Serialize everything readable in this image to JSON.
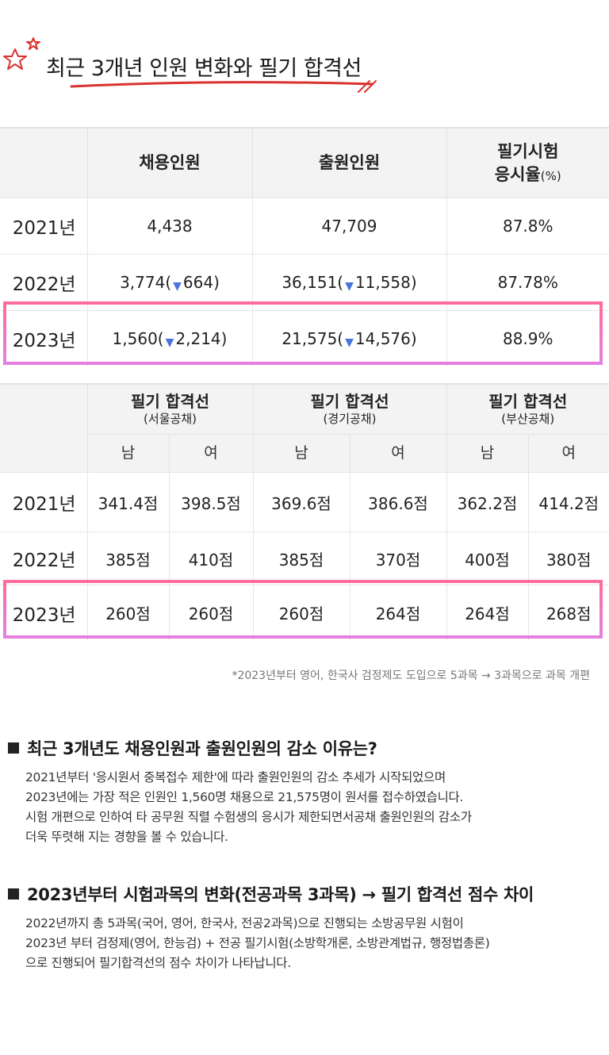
{
  "heading": {
    "title": "최근 3개년 인원 변화와 필기 합격선"
  },
  "table1": {
    "headers": [
      "채용인원",
      "출원인원",
      "필기시험",
      "응시율",
      "(%)"
    ],
    "rows": [
      {
        "year": "2021년",
        "hire": "4,438",
        "hire_delta": "",
        "apply": "47,709",
        "apply_delta": "",
        "rate": "87.8%"
      },
      {
        "year": "2022년",
        "hire": "3,774(",
        "hire_delta": "664)",
        "apply": "36,151(",
        "apply_delta": "11,558)",
        "rate": "87.78%"
      },
      {
        "year": "2023년",
        "hire": "1,560(",
        "hire_delta": "2,214)",
        "apply": "21,575(",
        "apply_delta": "14,576)",
        "rate": "88.9%"
      }
    ],
    "down_arrow": "▼"
  },
  "table2": {
    "group_title": "필기 합격선",
    "groups": [
      "(서울공채)",
      "(경기공채)",
      "(부산공채)"
    ],
    "genders": [
      "남",
      "여"
    ],
    "rows": [
      {
        "year": "2021년",
        "vals": [
          "341.4점",
          "398.5점",
          "369.6점",
          "386.6점",
          "362.2점",
          "414.2점"
        ]
      },
      {
        "year": "2022년",
        "vals": [
          "385점",
          "410점",
          "385점",
          "370점",
          "400점",
          "380점"
        ]
      },
      {
        "year": "2023년",
        "vals": [
          "260점",
          "260점",
          "260점",
          "264점",
          "264점",
          "268점"
        ]
      }
    ]
  },
  "footnote": "*2023년부터 영어, 한국사 검정제도 도입으로 5과목 → 3과목으로 과목 개편",
  "section1": {
    "question": "최근 3개년도 채용인원과 출원인원의 감소 이유는?",
    "lines": [
      "2021년부터 '응시원서 중복접수 제한'에 따라 출원인원의 감소 추세가 시작되었으며",
      "2023년에는 가장 적은 인원인 1,560명 채용으로 21,575명이 원서를 접수하였습니다.",
      "시험 개편으로 인하여 타 공무원 직렬 수험생의 응시가 제한되면서공채 출원인원의 감소가",
      "더욱 뚜렷해 지는 경향을 볼 수 있습니다."
    ]
  },
  "section2": {
    "question": "2023년부터 시험과목의 변화(전공과목 3과목) → 필기 합격선 점수 차이",
    "lines": [
      "2022년까지 총 5과목(국어, 영어, 한국사, 전공2과목)으로 진행되는 소방공무원 시험이",
      "2023년 부터 검정제(영어, 한능검) + 전공 필기시험(소방학개론, 소방관계법규, 행정법총론)",
      "으로 진행되어 필기합격선의 점수 차이가 나타납니다."
    ]
  },
  "colors": {
    "highlight_top": "#ff6b9a",
    "highlight_bottom": "#e57fe0",
    "arrow": "#4a74dd",
    "star": "#d8332e"
  }
}
